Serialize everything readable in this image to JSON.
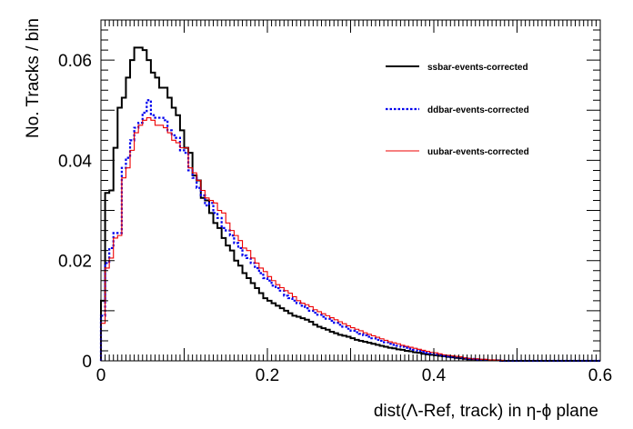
{
  "chart_data": {
    "type": "step",
    "title": "",
    "xlabel": "dist(Λ-Ref, track) in η-ϕ plane",
    "ylabel": "No. Tracks / bin",
    "xlim": [
      0,
      0.6
    ],
    "ylim": [
      0,
      0.068
    ],
    "xticks": [
      0,
      0.2,
      0.4,
      0.6
    ],
    "xtick_labels": [
      "0",
      "0.2",
      "0.4",
      "0.6"
    ],
    "yticks": [
      0,
      0.02,
      0.04,
      0.06
    ],
    "ytick_labels": [
      "0",
      "0.02",
      "0.04",
      "0.06"
    ],
    "grid": false,
    "legend_position": "top-right",
    "bin_width": 0.005,
    "series": [
      {
        "name": "ssbar-events-corrected",
        "color": "#000000",
        "style": "solid",
        "values": [
          0.012,
          0.0335,
          0.034,
          0.0425,
          0.0505,
          0.0525,
          0.0565,
          0.06,
          0.0625,
          0.0625,
          0.062,
          0.06,
          0.0575,
          0.0565,
          0.0545,
          0.0545,
          0.0525,
          0.0505,
          0.049,
          0.046,
          0.0425,
          0.0415,
          0.037,
          0.036,
          0.0325,
          0.032,
          0.0295,
          0.0275,
          0.0265,
          0.0245,
          0.023,
          0.022,
          0.02,
          0.019,
          0.0175,
          0.0165,
          0.0155,
          0.0145,
          0.0135,
          0.0125,
          0.012,
          0.0115,
          0.011,
          0.0105,
          0.01,
          0.0095,
          0.009,
          0.0088,
          0.0085,
          0.0082,
          0.0078,
          0.0072,
          0.0068,
          0.0065,
          0.0062,
          0.0058,
          0.0055,
          0.0052,
          0.005,
          0.0048,
          0.0045,
          0.0042,
          0.004,
          0.0038,
          0.0036,
          0.0034,
          0.0032,
          0.003,
          0.0028,
          0.0026,
          0.0025,
          0.0023,
          0.0022,
          0.002,
          0.0019,
          0.0017,
          0.0016,
          0.0014,
          0.0013,
          0.0012,
          0.0011,
          0.001,
          0.0009,
          0.0008,
          0.0007,
          0.0006,
          0.0005,
          0.0004,
          0.0003,
          0.0003,
          0.0002,
          0.0002,
          0.0001,
          0.0001,
          0.0001,
          0.0001,
          0.0,
          0.0,
          0.0,
          0.0,
          0.0,
          0.0,
          0.0,
          0.0,
          0.0,
          0.0,
          0.0,
          0.0,
          0.0,
          0.0,
          0.0,
          0.0,
          0.0,
          0.0,
          0.0,
          0.0,
          0.0,
          0.0,
          0.0,
          0.0
        ]
      },
      {
        "name": "ddbar-events-corrected",
        "color": "#0000ee",
        "style": "dotted",
        "values": [
          0.009,
          0.0195,
          0.0225,
          0.0255,
          0.0255,
          0.0385,
          0.0405,
          0.044,
          0.0465,
          0.0475,
          0.0495,
          0.052,
          0.049,
          0.0485,
          0.0485,
          0.048,
          0.046,
          0.045,
          0.0445,
          0.042,
          0.0415,
          0.038,
          0.0365,
          0.0345,
          0.033,
          0.031,
          0.0315,
          0.0295,
          0.0285,
          0.0265,
          0.026,
          0.025,
          0.0235,
          0.0225,
          0.021,
          0.0205,
          0.0195,
          0.0185,
          0.0175,
          0.0165,
          0.016,
          0.015,
          0.0145,
          0.014,
          0.013,
          0.0125,
          0.012,
          0.0115,
          0.011,
          0.0105,
          0.01,
          0.0096,
          0.0092,
          0.0088,
          0.0084,
          0.008,
          0.0076,
          0.0072,
          0.0068,
          0.0064,
          0.006,
          0.0057,
          0.0054,
          0.0051,
          0.0048,
          0.0045,
          0.0042,
          0.004,
          0.0037,
          0.0034,
          0.0032,
          0.003,
          0.0028,
          0.0026,
          0.0024,
          0.0022,
          0.002,
          0.0018,
          0.0016,
          0.0015,
          0.0013,
          0.0012,
          0.001,
          0.0009,
          0.0008,
          0.0007,
          0.0006,
          0.0005,
          0.0004,
          0.0004,
          0.0003,
          0.0002,
          0.0002,
          0.0001,
          0.0001,
          0.0001,
          0.0,
          0.0,
          0.0,
          0.0,
          0.0,
          0.0,
          0.0,
          0.0,
          0.0,
          0.0,
          0.0,
          0.0,
          0.0,
          0.0,
          0.0,
          0.0,
          0.0,
          0.0,
          0.0,
          0.0,
          0.0,
          0.0,
          0.0,
          0.0
        ]
      },
      {
        "name": "uubar-events-corrected",
        "color": "#ee0000",
        "style": "solid",
        "values": [
          0.0075,
          0.0185,
          0.0205,
          0.0245,
          0.025,
          0.0365,
          0.0385,
          0.042,
          0.0455,
          0.047,
          0.048,
          0.0485,
          0.048,
          0.047,
          0.047,
          0.0465,
          0.0455,
          0.044,
          0.0435,
          0.0425,
          0.0425,
          0.0385,
          0.0375,
          0.036,
          0.034,
          0.0325,
          0.032,
          0.0315,
          0.03,
          0.0295,
          0.0275,
          0.026,
          0.025,
          0.024,
          0.0225,
          0.022,
          0.0205,
          0.0195,
          0.0185,
          0.0178,
          0.0168,
          0.016,
          0.0152,
          0.0146,
          0.014,
          0.0135,
          0.0128,
          0.012,
          0.0115,
          0.0112,
          0.0108,
          0.0102,
          0.0098,
          0.0094,
          0.009,
          0.0086,
          0.0082,
          0.0078,
          0.0074,
          0.007,
          0.0066,
          0.0063,
          0.006,
          0.0056,
          0.0053,
          0.005,
          0.0047,
          0.0044,
          0.0041,
          0.0038,
          0.0036,
          0.0034,
          0.0031,
          0.0029,
          0.0027,
          0.0025,
          0.0023,
          0.0021,
          0.0019,
          0.0017,
          0.0016,
          0.0014,
          0.0012,
          0.0011,
          0.001,
          0.0009,
          0.0008,
          0.0006,
          0.0005,
          0.0004,
          0.0004,
          0.0003,
          0.0003,
          0.0002,
          0.0002,
          0.0001,
          0.0001,
          0.0,
          0.0,
          0.0,
          0.0,
          0.0,
          0.0,
          0.0,
          0.0,
          0.0,
          0.0,
          0.0,
          0.0,
          0.0,
          0.0,
          0.0,
          0.0,
          0.0,
          0.0,
          0.0,
          0.0,
          0.0,
          0.0,
          0.0
        ]
      }
    ]
  }
}
